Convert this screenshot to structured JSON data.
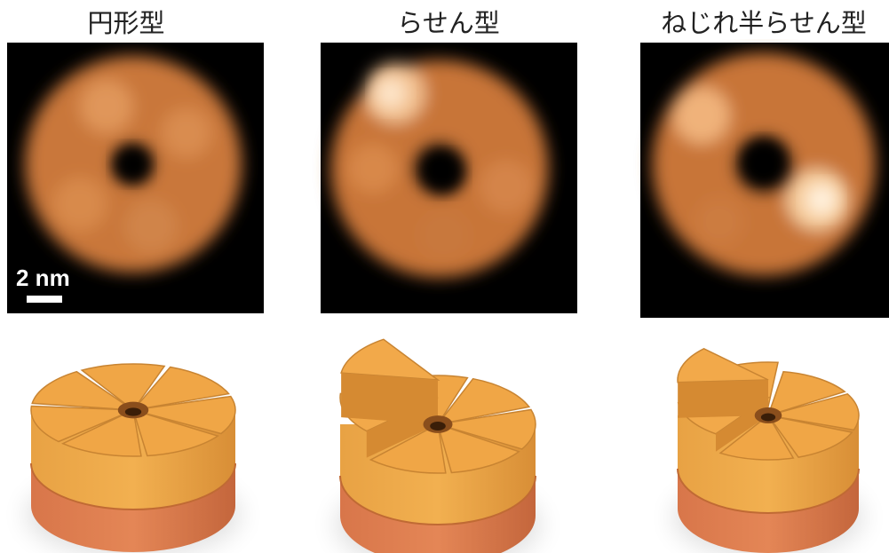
{
  "panels": [
    {
      "title": "円形型"
    },
    {
      "title": "らせん型"
    },
    {
      "title": "ねじれ半らせん型"
    }
  ],
  "scale_bar": {
    "label": "2 nm"
  }
}
